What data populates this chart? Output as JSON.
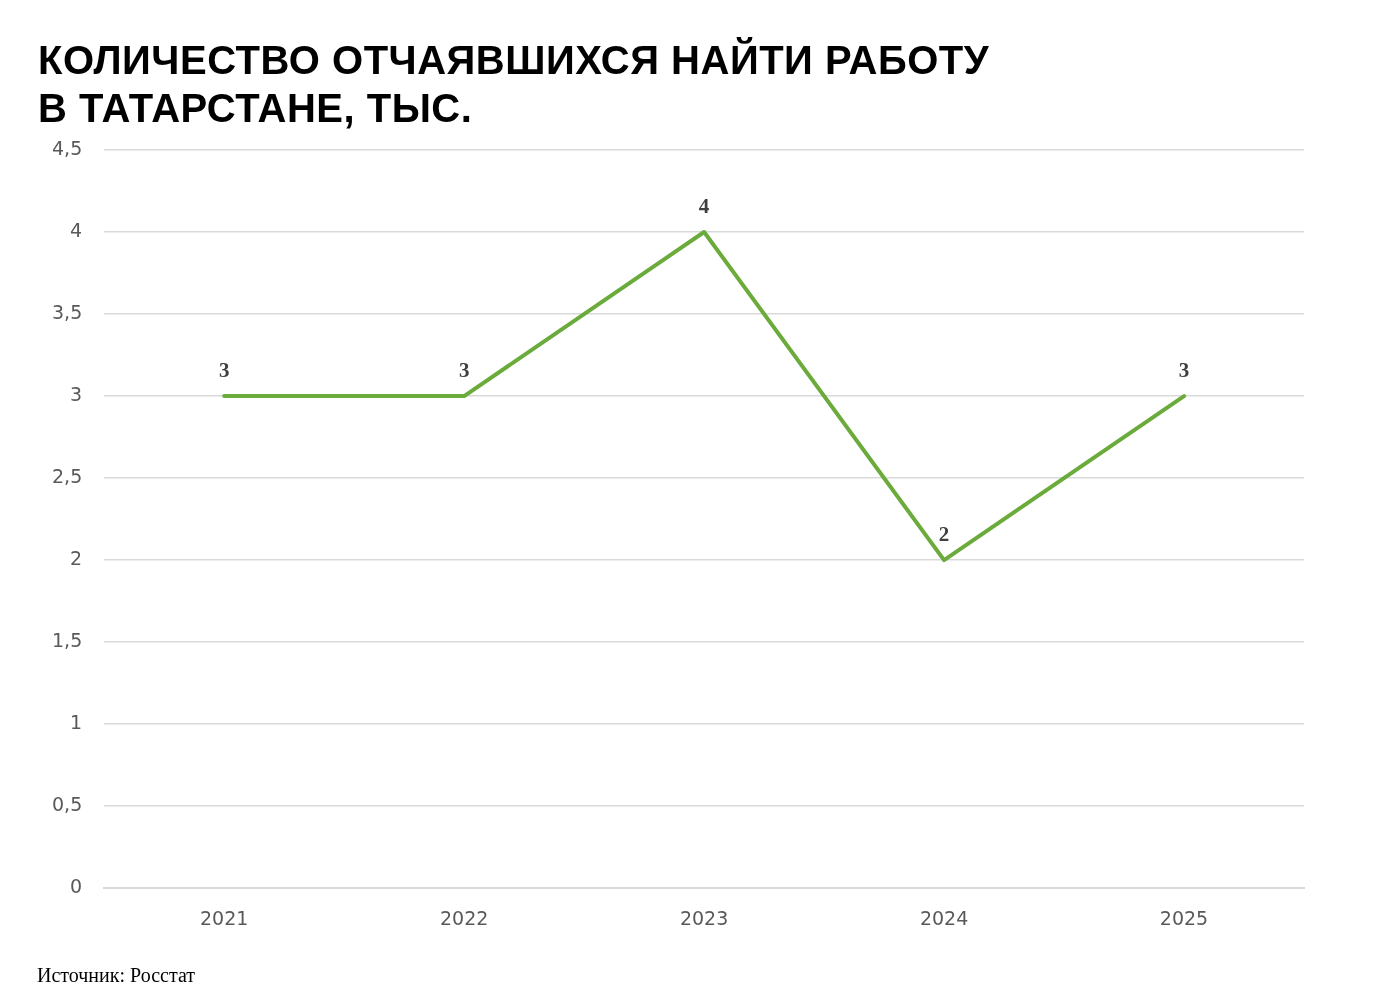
{
  "chart_data": {
    "type": "line",
    "title": "КОЛИЧЕСТВО ОТЧАЯВШИХСЯ НАЙТИ РАБОТУ\nВ ТАТАРСТАНЕ, ТЫС.",
    "categories": [
      "2021",
      "2022",
      "2023",
      "2024",
      "2025"
    ],
    "series": [
      {
        "color": "#6aab3c",
        "values": [
          3,
          3,
          4,
          2,
          3
        ]
      }
    ],
    "ylim": [
      0,
      4.5
    ],
    "yticks": [
      0,
      {
        "value": 0.5,
        "label": "0,5"
      },
      1,
      {
        "value": 1.5,
        "label": "1,5"
      },
      2,
      {
        "value": 2.5,
        "label": "2,5"
      },
      3,
      {
        "value": 3.5,
        "label": "3,5"
      },
      4,
      {
        "value": 4.5,
        "label": "4,5"
      }
    ],
    "grid": "y",
    "legend": false,
    "marker": "none",
    "line_style": "solid",
    "data_labels": true,
    "annotations": [
      "Источник: Росстат"
    ]
  }
}
